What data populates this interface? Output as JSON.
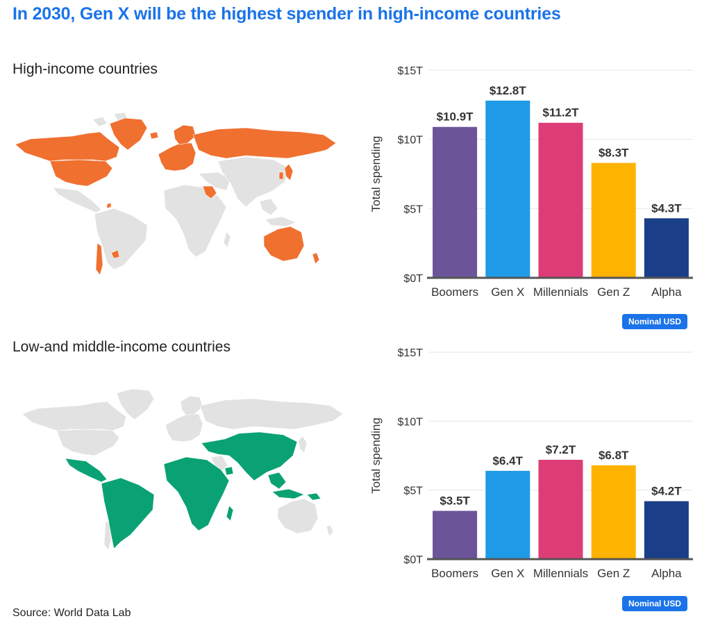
{
  "title": "In 2030, Gen X will be the highest spender in high-income countries",
  "source": "Source: World Data Lab",
  "colors": {
    "title": "#1a73e8",
    "high_income_map": "#f07030",
    "low_middle_income_map": "#0aa274",
    "other_countries": "#e2e2e2",
    "badge": "#1a73e8"
  },
  "sections": {
    "high": {
      "label": "High-income countries",
      "badge": "Nominal USD",
      "map_icon": "world-map-icon"
    },
    "low": {
      "label": "Low-and middle-income countries",
      "badge": "Nominal USD",
      "map_icon": "world-map-icon"
    }
  },
  "chart_data": [
    {
      "type": "bar",
      "title": "High-income countries",
      "categories": [
        "Boomers",
        "Gen X",
        "Millennials",
        "Gen Z",
        "Alpha"
      ],
      "values": [
        10.9,
        12.8,
        11.2,
        8.3,
        4.3
      ],
      "value_labels": [
        "$10.9T",
        "$12.8T",
        "$11.2T",
        "$8.3T",
        "$4.3T"
      ],
      "colors": [
        "#6b5498",
        "#1f9ae6",
        "#dc3d77",
        "#fdb300",
        "#1a3e88"
      ],
      "xlabel": "",
      "ylabel": "Total spending",
      "ylim": [
        0,
        15
      ],
      "yticks": [
        0,
        5,
        10,
        15
      ],
      "ytick_labels": [
        "$0T",
        "$5T",
        "$10T",
        "$15T"
      ],
      "grid": true
    },
    {
      "type": "bar",
      "title": "Low-and middle-income countries",
      "categories": [
        "Boomers",
        "Gen X",
        "Millennials",
        "Gen Z",
        "Alpha"
      ],
      "values": [
        3.5,
        6.4,
        7.2,
        6.8,
        4.2
      ],
      "value_labels": [
        "$3.5T",
        "$6.4T",
        "$7.2T",
        "$6.8T",
        "$4.2T"
      ],
      "colors": [
        "#6b5498",
        "#1f9ae6",
        "#dc3d77",
        "#fdb300",
        "#1a3e88"
      ],
      "xlabel": "",
      "ylabel": "Total spending",
      "ylim": [
        0,
        15
      ],
      "yticks": [
        0,
        5,
        10,
        15
      ],
      "ytick_labels": [
        "$0T",
        "$5T",
        "$10T",
        "$15T"
      ],
      "grid": true
    }
  ]
}
